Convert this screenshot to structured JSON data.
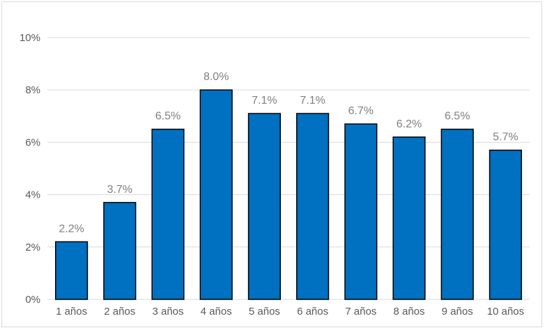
{
  "chart_data": {
    "type": "bar",
    "categories": [
      "1 años",
      "2 años",
      "3 años",
      "4 años",
      "5 años",
      "6 años",
      "7 años",
      "8 años",
      "9 años",
      "10 años"
    ],
    "values": [
      2.2,
      3.7,
      6.5,
      8.0,
      7.1,
      7.1,
      6.7,
      6.2,
      6.5,
      5.7
    ],
    "data_labels": [
      "2.2%",
      "3.7%",
      "6.5%",
      "8.0%",
      "7.1%",
      "7.1%",
      "6.7%",
      "6.2%",
      "6.5%",
      "5.7%"
    ],
    "y_ticks": [
      0,
      2,
      4,
      6,
      8,
      10
    ],
    "y_tick_labels": [
      "0%",
      "2%",
      "4%",
      "6%",
      "8%",
      "10%"
    ],
    "ylim": [
      0,
      10
    ],
    "grid": true,
    "legend": "none",
    "bar_color": "#0070C0"
  }
}
